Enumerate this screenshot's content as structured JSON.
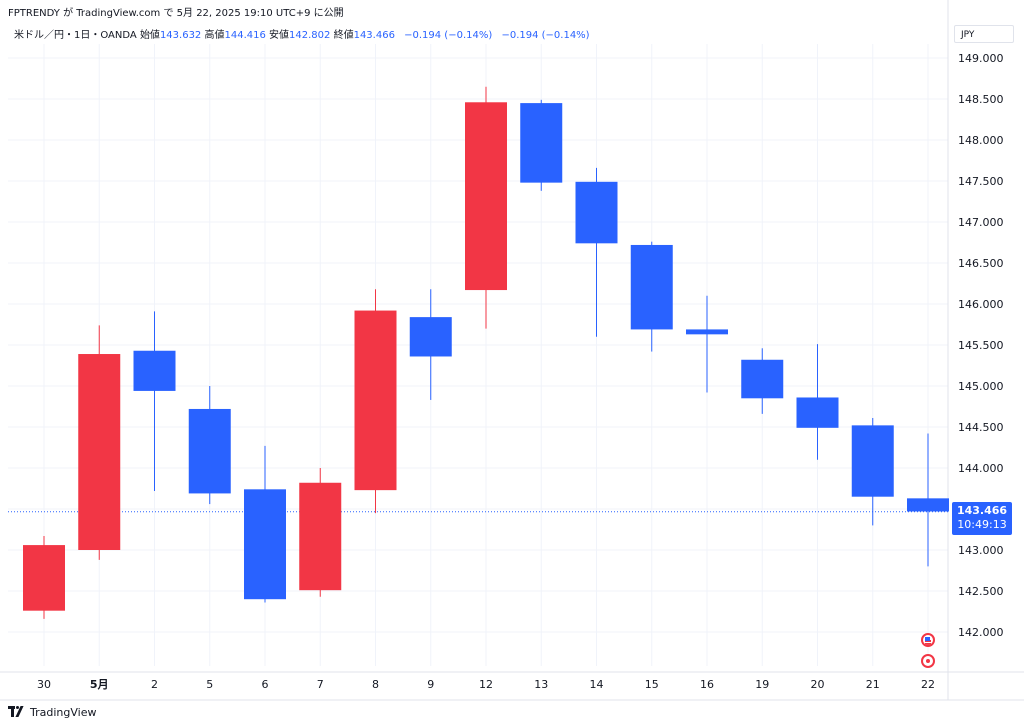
{
  "header": {
    "published": "FPTRENDY が TradingView.com で 5月 22, 2025 19:10 UTC+9 に公開"
  },
  "legend": {
    "symbol": "米ドル／円・1日・OANDA",
    "open_label": "始値",
    "open": "143.632",
    "high_label": "高値",
    "high": "144.416",
    "low_label": "安値",
    "low": "142.802",
    "close_label": "終値",
    "close": "143.466",
    "change": "−0.194 (−0.14%)",
    "change2": "−0.194 (−0.14%)"
  },
  "currency_button": "JPY",
  "price_tag": {
    "price": "143.466",
    "countdown": "10:49:13"
  },
  "brand": "TradingView",
  "colors": {
    "up": "#f23645",
    "down": "#2962ff",
    "grid": "#f0f3fa",
    "last_line": "#2962ff"
  },
  "events": [
    "us-flag-icon",
    "economic-event-icon"
  ],
  "chart_data": {
    "type": "candlestick",
    "y_ticks": [
      "149.000",
      "148.500",
      "148.000",
      "147.500",
      "147.000",
      "146.500",
      "146.000",
      "145.500",
      "145.000",
      "144.500",
      "144.000",
      "143.500",
      "143.000",
      "142.500",
      "142.000"
    ],
    "ylim": [
      141.55,
      149.35
    ],
    "candles": [
      {
        "x": "30",
        "open": 142.26,
        "high": 143.17,
        "low": 142.16,
        "close": 143.06
      },
      {
        "x": "5月",
        "open": 143.0,
        "high": 145.74,
        "low": 142.88,
        "close": 145.39
      },
      {
        "x": "2",
        "open": 145.43,
        "high": 145.91,
        "low": 143.72,
        "close": 144.94
      },
      {
        "x": "5",
        "open": 144.72,
        "high": 145.0,
        "low": 143.56,
        "close": 143.69
      },
      {
        "x": "6",
        "open": 143.74,
        "high": 144.27,
        "low": 142.36,
        "close": 142.4
      },
      {
        "x": "7",
        "open": 142.51,
        "high": 144.0,
        "low": 142.43,
        "close": 143.82
      },
      {
        "x": "8",
        "open": 143.73,
        "high": 146.18,
        "low": 143.45,
        "close": 145.92
      },
      {
        "x": "9",
        "open": 145.84,
        "high": 146.18,
        "low": 144.83,
        "close": 145.36
      },
      {
        "x": "12",
        "open": 146.17,
        "high": 148.65,
        "low": 145.7,
        "close": 148.46
      },
      {
        "x": "13",
        "open": 148.45,
        "high": 148.49,
        "low": 147.38,
        "close": 147.48
      },
      {
        "x": "14",
        "open": 147.49,
        "high": 147.66,
        "low": 145.6,
        "close": 146.74
      },
      {
        "x": "15",
        "open": 146.72,
        "high": 146.76,
        "low": 145.42,
        "close": 145.69
      },
      {
        "x": "16",
        "open": 145.69,
        "high": 146.1,
        "low": 144.92,
        "close": 145.63
      },
      {
        "x": "19",
        "open": 145.32,
        "high": 145.46,
        "low": 144.66,
        "close": 144.85
      },
      {
        "x": "20",
        "open": 144.86,
        "high": 145.51,
        "low": 144.1,
        "close": 144.49
      },
      {
        "x": "21",
        "open": 144.52,
        "high": 144.61,
        "low": 143.3,
        "close": 143.65
      },
      {
        "x": "22",
        "open": 143.63,
        "high": 144.42,
        "low": 142.8,
        "close": 143.47
      }
    ],
    "last_price": 143.466
  }
}
